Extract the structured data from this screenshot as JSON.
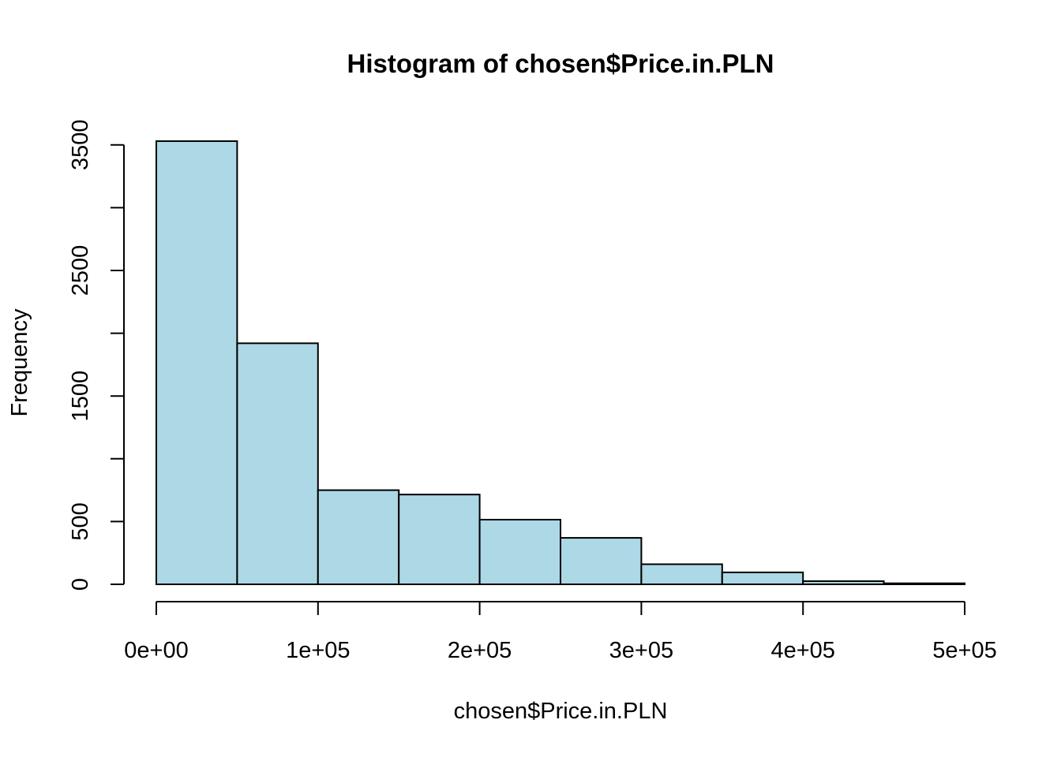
{
  "chart_data": {
    "type": "bar",
    "subtype": "histogram",
    "title": "Histogram of chosen$Price.in.PLN",
    "xlabel": "chosen$Price.in.PLN",
    "ylabel": "Frequency",
    "bin_edges": [
      0,
      50000,
      100000,
      150000,
      200000,
      250000,
      300000,
      350000,
      400000,
      450000,
      500000
    ],
    "values": [
      3530,
      1920,
      750,
      715,
      515,
      370,
      160,
      95,
      25,
      8
    ],
    "xlim": [
      0,
      500000
    ],
    "ylim": [
      0,
      3530
    ],
    "x_ticks": [
      {
        "value": 0,
        "label": "0e+00"
      },
      {
        "value": 100000,
        "label": "1e+05"
      },
      {
        "value": 200000,
        "label": "2e+05"
      },
      {
        "value": 300000,
        "label": "3e+05"
      },
      {
        "value": 400000,
        "label": "4e+05"
      },
      {
        "value": 500000,
        "label": "5e+05"
      }
    ],
    "y_ticks": [
      {
        "value": 0,
        "label": "0"
      },
      {
        "value": 500,
        "label": "500"
      },
      {
        "value": 1000,
        "label": ""
      },
      {
        "value": 1500,
        "label": "1500"
      },
      {
        "value": 2000,
        "label": ""
      },
      {
        "value": 2500,
        "label": "2500"
      },
      {
        "value": 3000,
        "label": ""
      },
      {
        "value": 3500,
        "label": "3500"
      }
    ],
    "grid": false,
    "bar_fill": "#add8e6",
    "bar_stroke": "#000000"
  }
}
